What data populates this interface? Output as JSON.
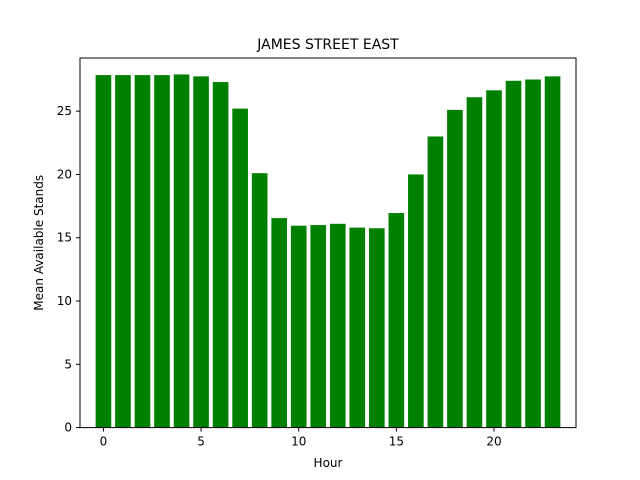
{
  "chart_data": {
    "type": "bar",
    "title": "JAMES STREET EAST",
    "xlabel": "Hour",
    "ylabel": "Mean Available Stands",
    "categories": [
      0,
      1,
      2,
      3,
      4,
      5,
      6,
      7,
      8,
      9,
      10,
      11,
      12,
      13,
      14,
      15,
      16,
      17,
      18,
      19,
      20,
      21,
      22,
      23
    ],
    "values": [
      27.85,
      27.85,
      27.85,
      27.85,
      27.9,
      27.75,
      27.3,
      25.2,
      20.1,
      16.55,
      15.95,
      16.0,
      16.1,
      15.8,
      15.75,
      16.95,
      20.0,
      23.0,
      25.1,
      26.1,
      26.65,
      27.4,
      27.5,
      27.75
    ],
    "xlim": [
      -1.2,
      24.2
    ],
    "ylim": [
      0,
      29.2
    ],
    "xticks": [
      0,
      5,
      10,
      15,
      20
    ],
    "yticks": [
      0,
      5,
      10,
      15,
      20,
      25
    ],
    "bar_color": "#008000",
    "grid": false,
    "legend": false
  }
}
